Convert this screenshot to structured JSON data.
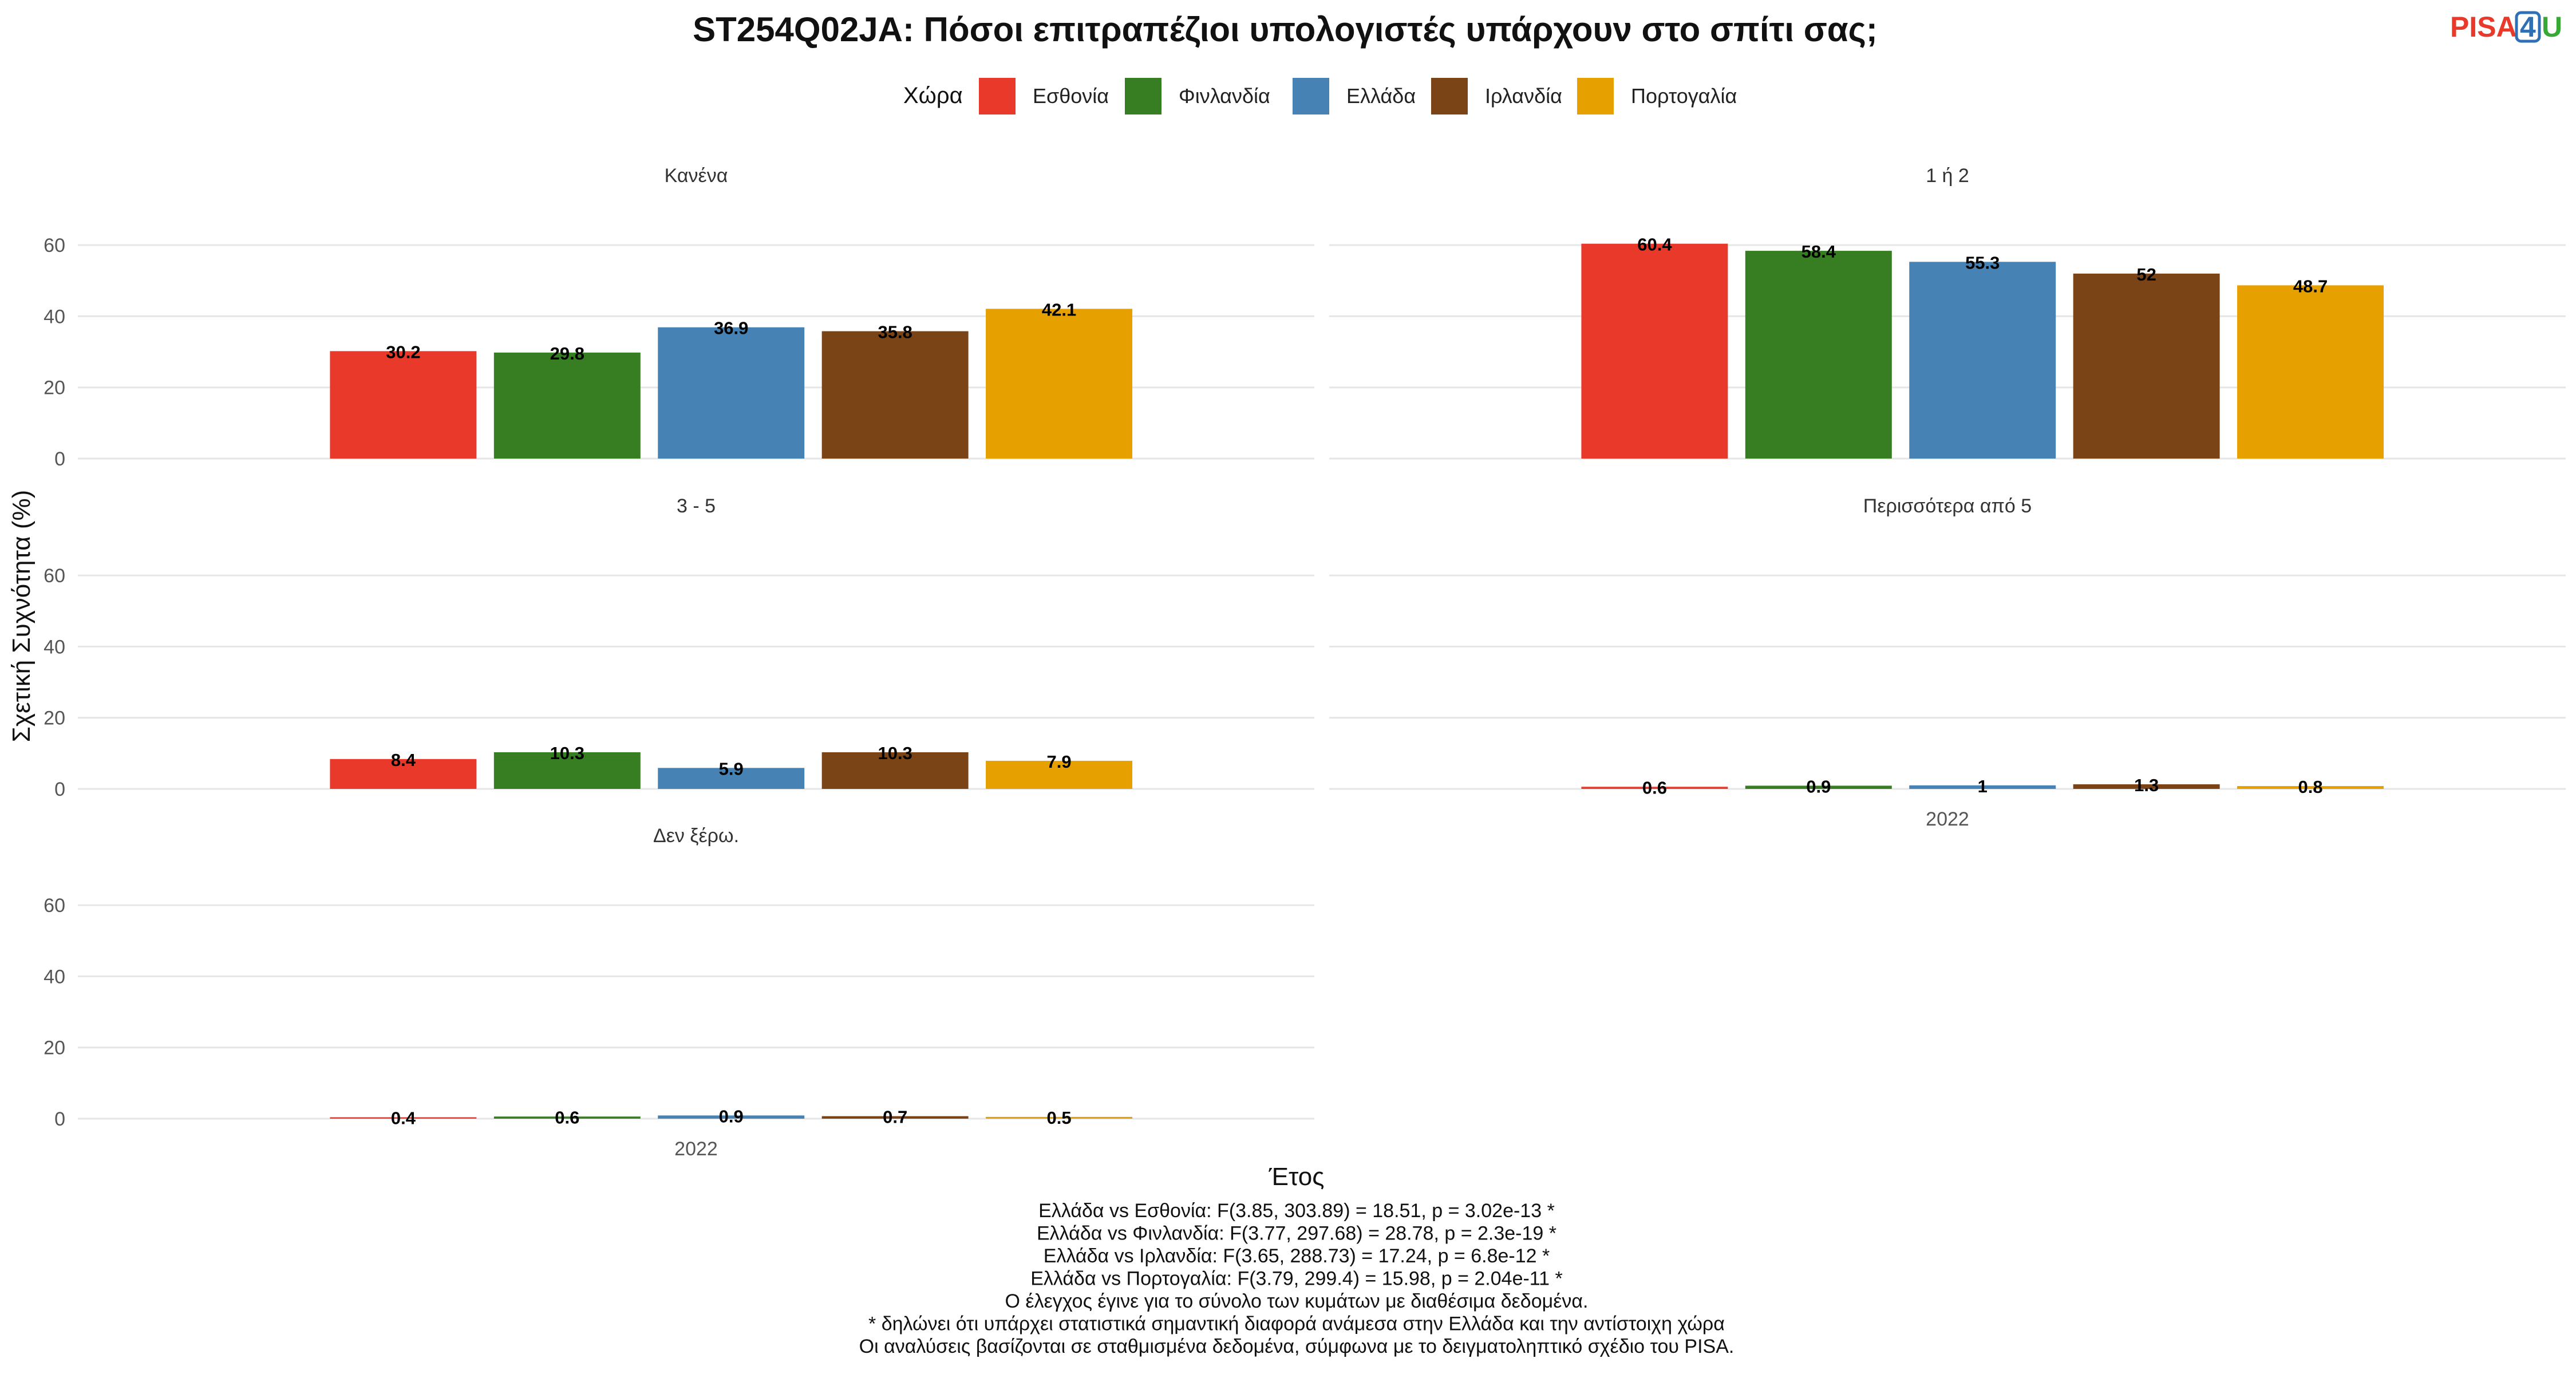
{
  "logo": {
    "part1": "PISA",
    "part2": "4",
    "part3": "U"
  },
  "chart_data": {
    "type": "bar",
    "title": "ST254Q02JA: Πόσοι επιτραπέζιοι υπολογιστές υπάρχουν στο σπίτι σας;",
    "legend": {
      "title": "Χώρα",
      "placement": "top",
      "entries": [
        {
          "name": "Εσθονία",
          "color": "#e8392a"
        },
        {
          "name": "Φινλανδία",
          "color": "#377e22"
        },
        {
          "name": "Ελλάδα",
          "color": "#4682b4"
        },
        {
          "name": "Ιρλανδία",
          "color": "#7a4416"
        },
        {
          "name": "Πορτογαλία",
          "color": "#e6a000"
        }
      ]
    },
    "xlabel": "Έτος",
    "ylabel": "Σχετική Συχνότητα (%)",
    "x_category": "2022",
    "ylim": [
      0,
      70
    ],
    "yticks": [
      0,
      20,
      40,
      60
    ],
    "grid": true,
    "panels": [
      {
        "label": "Κανένα",
        "values": [
          30.2,
          29.8,
          36.9,
          35.8,
          42.1
        ],
        "value_labels": [
          "30.2",
          "29.8",
          "36.9",
          "35.8",
          "42.1"
        ]
      },
      {
        "label": "1 ή 2",
        "values": [
          60.4,
          58.4,
          55.3,
          52,
          48.7
        ],
        "value_labels": [
          "60.4",
          "58.4",
          "55.3",
          "52",
          "48.7"
        ]
      },
      {
        "label": "3 - 5",
        "values": [
          8.4,
          10.3,
          5.9,
          10.3,
          7.9
        ],
        "value_labels": [
          "8.4",
          "10.3",
          "5.9",
          "10.3",
          "7.9"
        ]
      },
      {
        "label": "Περισσότερα από 5",
        "values": [
          0.6,
          0.9,
          1,
          1.3,
          0.8
        ],
        "value_labels": [
          "0.6",
          "0.9",
          "1",
          "1.3",
          "0.8"
        ]
      },
      {
        "label": "Δεν ξέρω.",
        "values": [
          0.4,
          0.6,
          0.9,
          0.7,
          0.5
        ],
        "value_labels": [
          "0.4",
          "0.6",
          "0.9",
          "0.7",
          "0.5"
        ]
      }
    ]
  },
  "caption_lines": [
    "Ελλάδα vs Εσθονία: F(3.85, 303.89) = 18.51, p = 3.02e-13 *",
    "Ελλάδα vs Φινλανδία: F(3.77, 297.68) = 28.78, p = 2.3e-19 *",
    "Ελλάδα vs Ιρλανδία: F(3.65, 288.73) = 17.24, p = 6.8e-12 *",
    "Ελλάδα vs Πορτογαλία: F(3.79, 299.4) = 15.98, p = 2.04e-11 *",
    "Ο έλεγχος έγινε για το σύνολο των κυμάτων με διαθέσιμα δεδομένα.",
    "* δηλώνει ότι υπάρχει στατιστικά σημαντική διαφορά ανάμεσα στην Ελλάδα και την αντίστοιχη χώρα",
    "Οι αναλύσεις βασίζονται σε σταθμισμένα δεδομένα, σύμφωνα με το δειγματοληπτικό σχέδιο του PISA."
  ]
}
